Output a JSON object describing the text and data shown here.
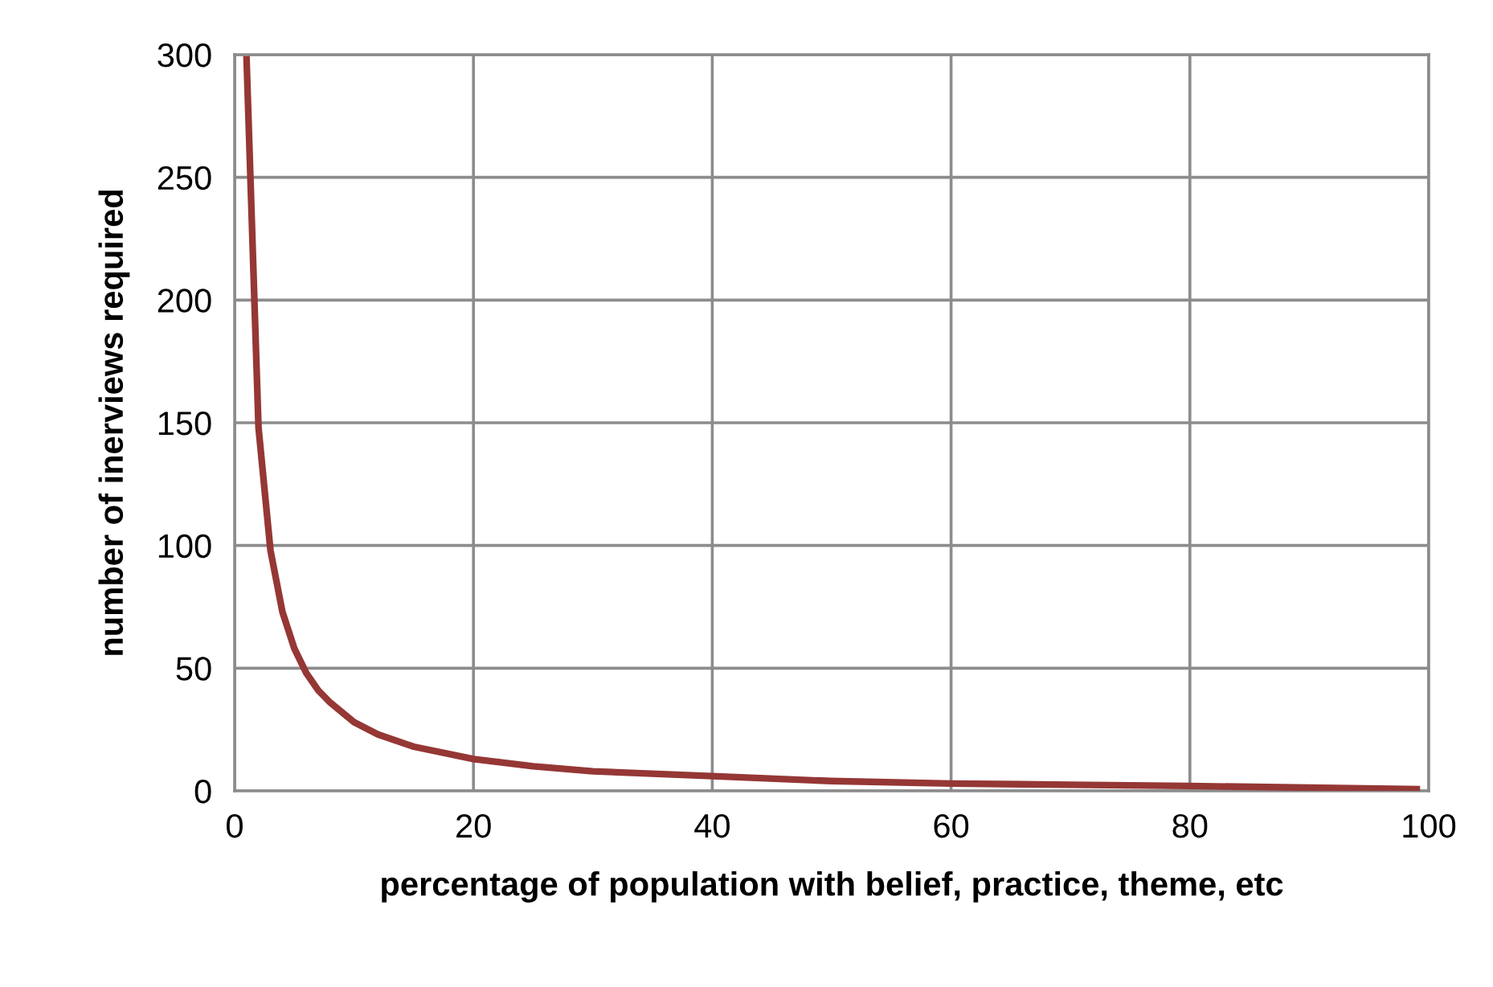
{
  "chart_data": {
    "type": "line",
    "xlabel": "percentage of population with belief, practice, theme, etc",
    "ylabel": "number of inerviews required",
    "x": [
      1,
      2,
      3,
      4,
      5,
      6,
      7,
      8,
      10,
      12,
      15,
      20,
      25,
      30,
      40,
      50,
      60,
      70,
      80,
      90,
      99
    ],
    "series": [
      {
        "color": "#953735",
        "values": [
          298,
          148,
          98,
          73,
          58,
          48,
          41,
          36,
          28,
          23,
          18,
          13,
          10,
          8,
          6,
          4,
          3,
          2.5,
          2,
          1.3,
          0.7
        ]
      }
    ],
    "xlim": [
      0,
      100
    ],
    "xticks": [
      0,
      20,
      40,
      60,
      80,
      100
    ],
    "ylim": [
      0,
      300
    ],
    "yticks": [
      0,
      50,
      100,
      150,
      200,
      250,
      300
    ],
    "grid": true,
    "legend": false,
    "marker": "none",
    "line_style": "solid"
  }
}
